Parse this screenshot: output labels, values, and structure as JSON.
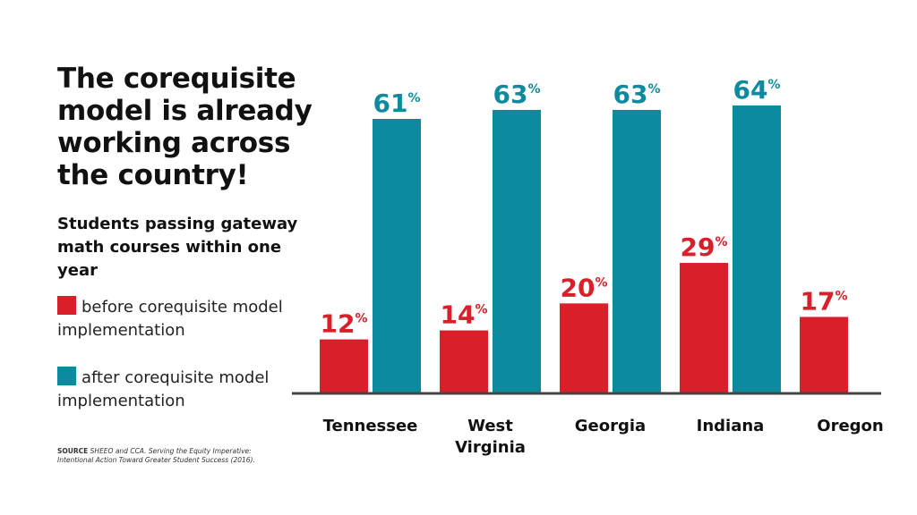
{
  "title": "The corequisite model is already working across the country!",
  "subtitle": "Students passing gateway math courses within one year",
  "legend": [
    {
      "label": "before corequisite model implementation",
      "color": "#d91f2a"
    },
    {
      "label": "after corequisite model implementation",
      "color": "#0e8a9e"
    }
  ],
  "source": {
    "label": "SOURCE",
    "text": "SHEEO and CCA. Serving the Equity Imperative: Intentional Action Toward Greater Student Success (2016)."
  },
  "chart_data": {
    "type": "bar",
    "categories": [
      "Tennessee",
      "West Virginia",
      "Georgia",
      "Indiana",
      "Oregon"
    ],
    "category_lines": [
      [
        "Tennessee"
      ],
      [
        "West",
        "Virginia"
      ],
      [
        "Georgia"
      ],
      [
        "Indiana"
      ],
      [
        "Oregon"
      ]
    ],
    "series": [
      {
        "name": "before corequisite model implementation",
        "color": "#d91f2a",
        "values": [
          12,
          14,
          20,
          29,
          17
        ]
      },
      {
        "name": "after corequisite model implementation",
        "color": "#0e8a9e",
        "values": [
          61,
          63,
          63,
          64,
          null
        ]
      }
    ],
    "value_suffix": "%",
    "ylim": [
      0,
      70
    ],
    "grid": false,
    "legend_position": "left",
    "xlabel": "",
    "ylabel": ""
  }
}
